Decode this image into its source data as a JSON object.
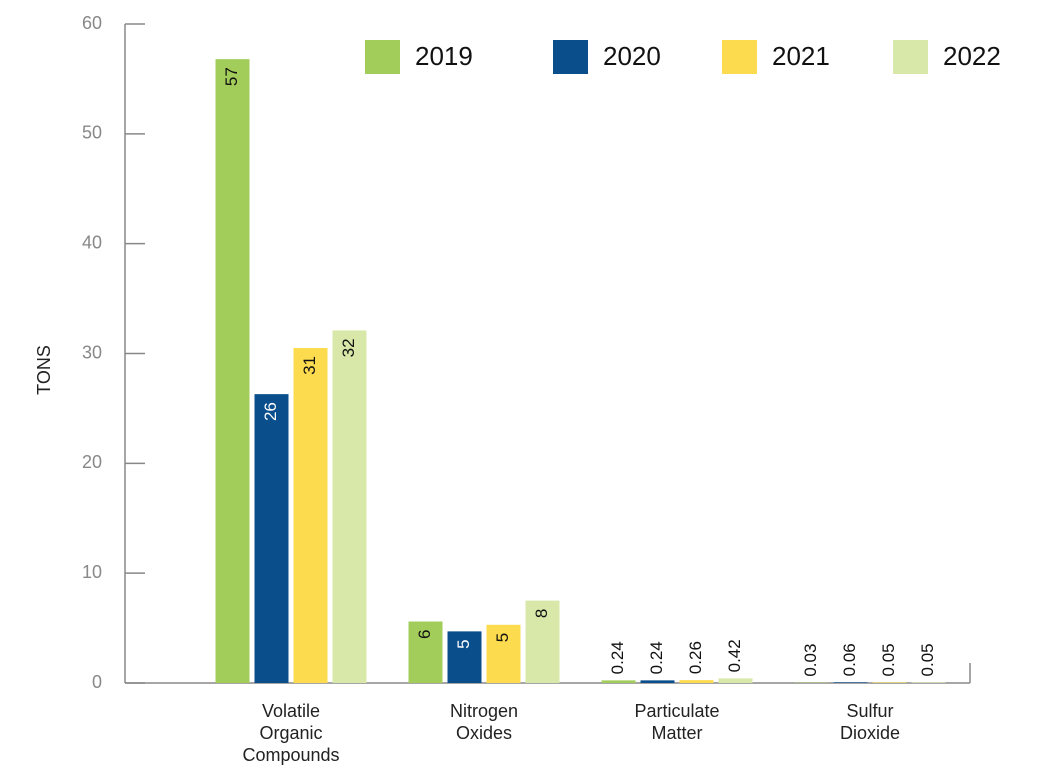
{
  "chart_data": {
    "type": "bar",
    "y_label": "TONS",
    "categories": [
      "Volatile Organic Compounds",
      "Nitrogen Oxides",
      "Particulate Matter",
      "Sulfur Dioxide"
    ],
    "series": [
      {
        "name": "2019",
        "color": "#a3cd5a",
        "values": [
          56.8,
          5.6,
          0.24,
          0.03
        ],
        "value_labels": [
          "57",
          "6",
          "0.24",
          "0.03"
        ]
      },
      {
        "name": "2020",
        "color": "#0a4f8c",
        "values": [
          26.3,
          4.7,
          0.24,
          0.06
        ],
        "value_labels": [
          "26",
          "5",
          "0.24",
          "0.06"
        ]
      },
      {
        "name": "2021",
        "color": "#fddb4e",
        "values": [
          30.5,
          5.3,
          0.26,
          0.05
        ],
        "value_labels": [
          "31",
          "5",
          "0.26",
          "0.05"
        ]
      },
      {
        "name": "2022",
        "color": "#d8e8a8",
        "values": [
          32.1,
          7.5,
          0.42,
          0.05
        ],
        "value_labels": [
          "32",
          "8",
          "0.42",
          "0.05"
        ]
      }
    ],
    "ylim": [
      0,
      60
    ],
    "yticks": [
      0,
      10,
      20,
      30,
      40,
      50,
      60
    ],
    "grid": false,
    "legend": "top"
  }
}
